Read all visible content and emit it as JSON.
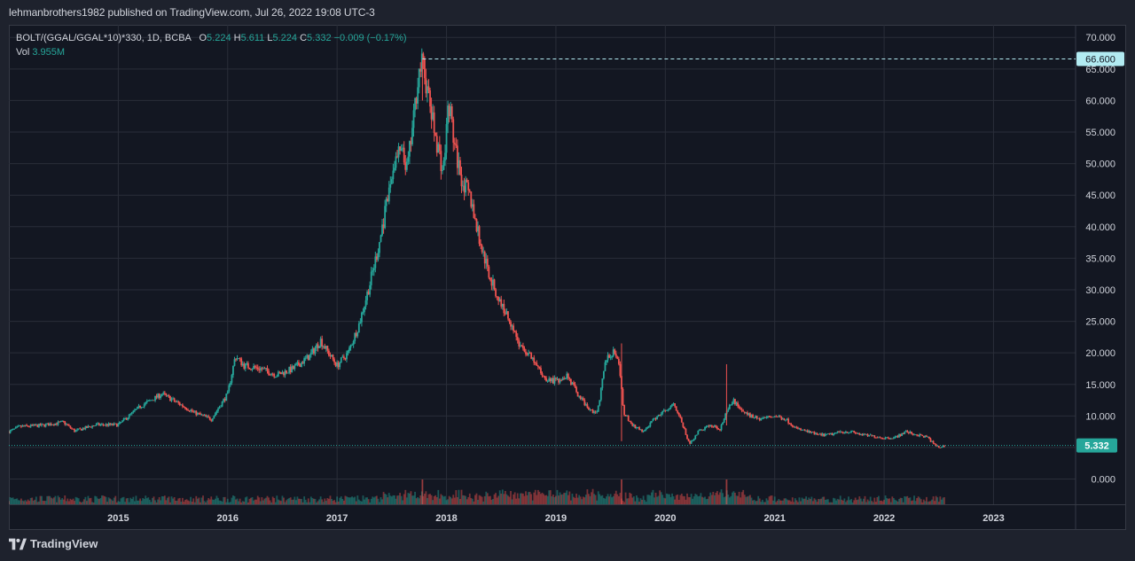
{
  "header": {
    "publisher_line": "lehmanbrothers1982 published on TradingView.com, Jul 26, 2022 19:08 UTC-3"
  },
  "legend": {
    "symbol": "BOLT/(GGAL/GGAL*10)*330, 1D, BCBA",
    "open_label": "O",
    "open": "5.224",
    "high_label": "H",
    "high": "5.611",
    "low_label": "L",
    "low": "5.224",
    "close_label": "C",
    "close": "5.332",
    "change": "−0.009 (−0.17%)",
    "vol_label": "Vol",
    "vol": "3.955M"
  },
  "branding": {
    "logo_text": "TradingView"
  },
  "colors": {
    "up": "#26a69a",
    "down": "#ef5350",
    "background": "#131722",
    "grid": "#2a2e39",
    "text": "#d1d4dc",
    "last_price_tag": "#26a69a",
    "high_tag": "#b2ebf2"
  },
  "chart_data": {
    "type": "candlestick",
    "x_axis": {
      "tick_labels": [
        "2015",
        "2016",
        "2017",
        "2018",
        "2019",
        "2020",
        "2021",
        "2022",
        "2023"
      ],
      "range": [
        2014.0,
        2023.75
      ]
    },
    "y_axis": {
      "tick_labels": [
        "70.000",
        "65.000",
        "60.000",
        "55.000",
        "50.000",
        "45.000",
        "40.000",
        "35.000",
        "30.000",
        "25.000",
        "20.000",
        "15.000",
        "10.000",
        "5.000",
        "0.000"
      ],
      "range": [
        -4,
        72
      ]
    },
    "high_marker": {
      "value": 66.6,
      "label": "66.600"
    },
    "last_price": {
      "value": 5.332,
      "label": "5.332"
    },
    "price_path": [
      [
        2014.0,
        7.5
      ],
      [
        2014.1,
        8.3
      ],
      [
        2014.3,
        8.5
      ],
      [
        2014.5,
        9.0
      ],
      [
        2014.6,
        7.6
      ],
      [
        2014.8,
        8.6
      ],
      [
        2015.0,
        8.6
      ],
      [
        2015.2,
        11.5
      ],
      [
        2015.4,
        13.5
      ],
      [
        2015.5,
        12.5
      ],
      [
        2015.7,
        10.5
      ],
      [
        2015.85,
        9.5
      ],
      [
        2016.0,
        13.5
      ],
      [
        2016.07,
        19.5
      ],
      [
        2016.15,
        18.0
      ],
      [
        2016.3,
        17.5
      ],
      [
        2016.45,
        16.5
      ],
      [
        2016.6,
        17.5
      ],
      [
        2016.75,
        19.5
      ],
      [
        2016.85,
        22.0
      ],
      [
        2016.92,
        20.0
      ],
      [
        2017.0,
        18.0
      ],
      [
        2017.1,
        20.0
      ],
      [
        2017.2,
        24.5
      ],
      [
        2017.3,
        31.0
      ],
      [
        2017.38,
        37.0
      ],
      [
        2017.46,
        44.0
      ],
      [
        2017.52,
        50.0
      ],
      [
        2017.58,
        52.0
      ],
      [
        2017.64,
        49.0
      ],
      [
        2017.7,
        57.0
      ],
      [
        2017.74,
        64.0
      ],
      [
        2017.78,
        66.0
      ],
      [
        2017.83,
        61.0
      ],
      [
        2017.88,
        56.0
      ],
      [
        2017.93,
        52.0
      ],
      [
        2017.97,
        48.5
      ],
      [
        2018.02,
        60.0
      ],
      [
        2018.08,
        52.0
      ],
      [
        2018.15,
        47.0
      ],
      [
        2018.22,
        44.5
      ],
      [
        2018.3,
        38.0
      ],
      [
        2018.38,
        33.0
      ],
      [
        2018.45,
        29.5
      ],
      [
        2018.52,
        27.0
      ],
      [
        2018.6,
        24.5
      ],
      [
        2018.67,
        21.0
      ],
      [
        2018.74,
        20.0
      ],
      [
        2018.82,
        18.0
      ],
      [
        2018.9,
        16.0
      ],
      [
        2019.0,
        15.5
      ],
      [
        2019.1,
        16.5
      ],
      [
        2019.2,
        13.5
      ],
      [
        2019.3,
        11.0
      ],
      [
        2019.38,
        10.5
      ],
      [
        2019.45,
        18.5
      ],
      [
        2019.53,
        20.5
      ],
      [
        2019.58,
        17.5
      ],
      [
        2019.62,
        10.5
      ],
      [
        2019.7,
        8.5
      ],
      [
        2019.8,
        7.5
      ],
      [
        2019.9,
        9.5
      ],
      [
        2020.0,
        11.0
      ],
      [
        2020.08,
        12.0
      ],
      [
        2020.15,
        9.0
      ],
      [
        2020.22,
        5.5
      ],
      [
        2020.3,
        7.5
      ],
      [
        2020.4,
        8.5
      ],
      [
        2020.5,
        8.0
      ],
      [
        2020.56,
        10.5
      ],
      [
        2020.62,
        12.5
      ],
      [
        2020.72,
        10.5
      ],
      [
        2020.85,
        9.5
      ],
      [
        2021.0,
        10.0
      ],
      [
        2021.1,
        9.5
      ],
      [
        2021.2,
        8.0
      ],
      [
        2021.3,
        7.5
      ],
      [
        2021.4,
        7.0
      ],
      [
        2021.5,
        7.0
      ],
      [
        2021.6,
        7.5
      ],
      [
        2021.7,
        7.5
      ],
      [
        2021.8,
        7.0
      ],
      [
        2021.9,
        6.8
      ],
      [
        2022.0,
        6.5
      ],
      [
        2022.1,
        6.6
      ],
      [
        2022.2,
        7.5
      ],
      [
        2022.3,
        7.0
      ],
      [
        2022.4,
        6.6
      ],
      [
        2022.45,
        5.6
      ],
      [
        2022.5,
        5.0
      ],
      [
        2022.56,
        5.332
      ]
    ],
    "spikes": [
      {
        "x": 2019.6,
        "high": 21.5,
        "low": 6.0
      },
      {
        "x": 2020.56,
        "high": 18.2,
        "low": 8.5
      },
      {
        "x": 2017.78,
        "high": 66.6,
        "low": 60.0
      }
    ]
  }
}
